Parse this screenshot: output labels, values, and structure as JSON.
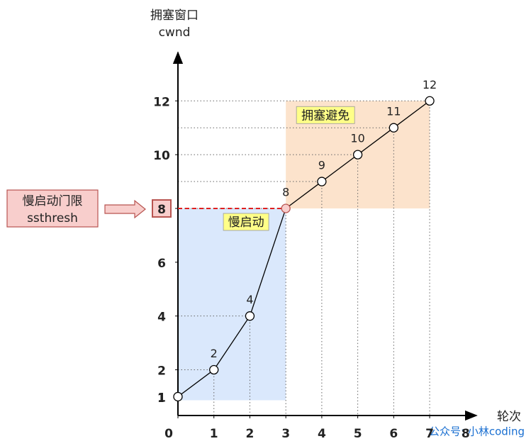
{
  "chart_data": {
    "type": "line",
    "y_label": [
      "拥塞窗口",
      "cwnd"
    ],
    "x_label": "轮次",
    "x": [
      0,
      1,
      2,
      3,
      4,
      5,
      6,
      7
    ],
    "series": [
      {
        "values": [
          1,
          2,
          4,
          8,
          9,
          10,
          11,
          12
        ],
        "color": "#000000"
      }
    ],
    "xlim": [
      0,
      8.3
    ],
    "xticks": [
      0,
      1,
      2,
      3,
      4,
      5,
      6,
      7,
      8
    ],
    "ylim": [
      0.3,
      13.8
    ],
    "yticks": [
      1,
      2,
      4,
      6,
      8,
      10,
      12
    ],
    "ssthresh": 8,
    "ssthresh_label": [
      "慢启动门限",
      "ssthresh"
    ],
    "phases": [
      {
        "label": "慢启动",
        "x": [
          0,
          3
        ],
        "color": "#dae8fc"
      },
      {
        "label": "拥塞避免",
        "x": [
          3,
          7
        ],
        "color": "#fce3cc"
      }
    ],
    "watermark": "公众号: 小林coding"
  }
}
